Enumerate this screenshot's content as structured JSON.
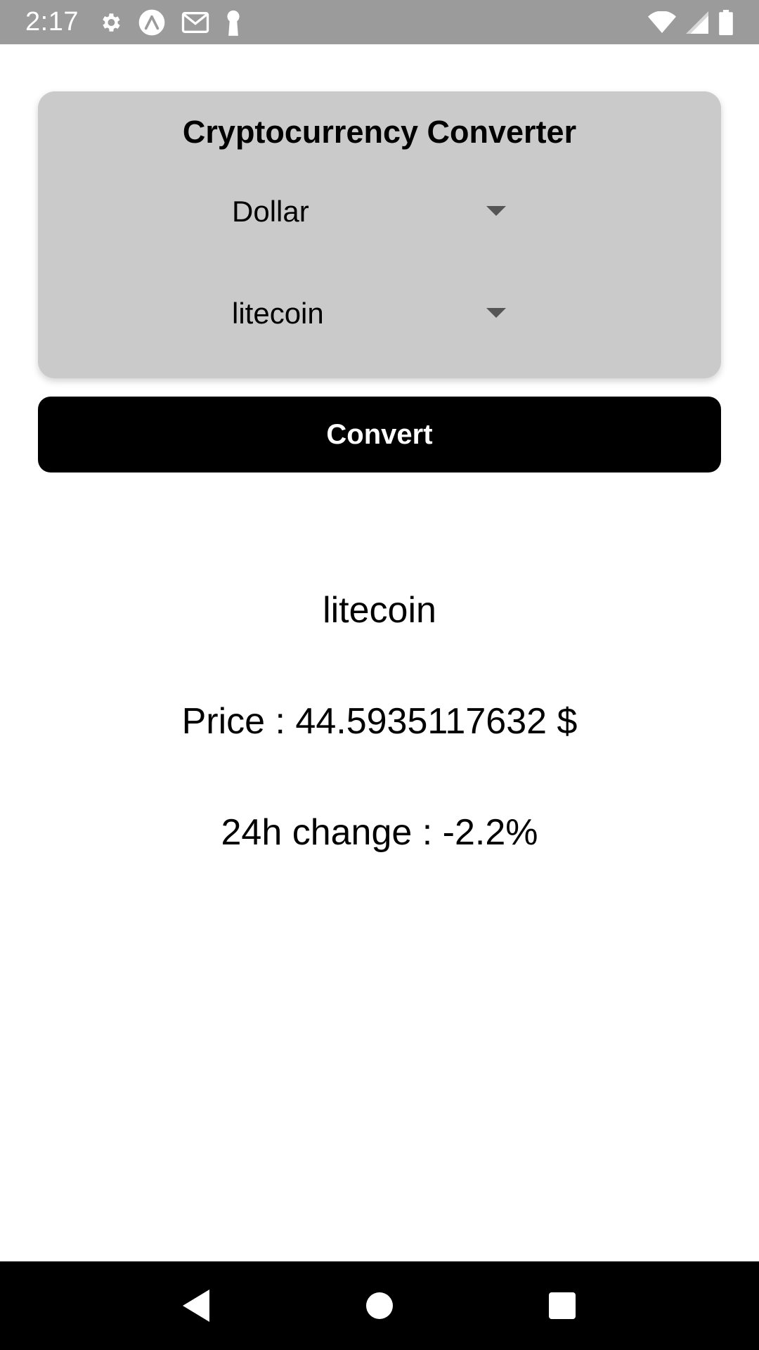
{
  "status_bar": {
    "time": "2:17",
    "left_icons": [
      "gear-icon",
      "expo-icon",
      "gmail-icon",
      "keyhole-icon"
    ],
    "right_icons": [
      "wifi-icon",
      "signal-icon",
      "battery-icon"
    ]
  },
  "card": {
    "title": "Cryptocurrency Converter",
    "currency_select": {
      "value": "Dollar"
    },
    "crypto_select": {
      "value": "litecoin"
    }
  },
  "convert_button": {
    "label": "Convert"
  },
  "result": {
    "coin": "litecoin",
    "price_label": "Price : ",
    "price_value": "44.5935117632",
    "price_unit": " $",
    "change_label": "24h change : ",
    "change_value": "-2.2%"
  },
  "nav_bar": {
    "buttons": [
      "back-icon",
      "home-icon",
      "recents-icon"
    ]
  },
  "colors": {
    "status_bar": "#9b9b9b",
    "card": "#cacaca",
    "button": "#000000",
    "nav_bar": "#000000"
  }
}
